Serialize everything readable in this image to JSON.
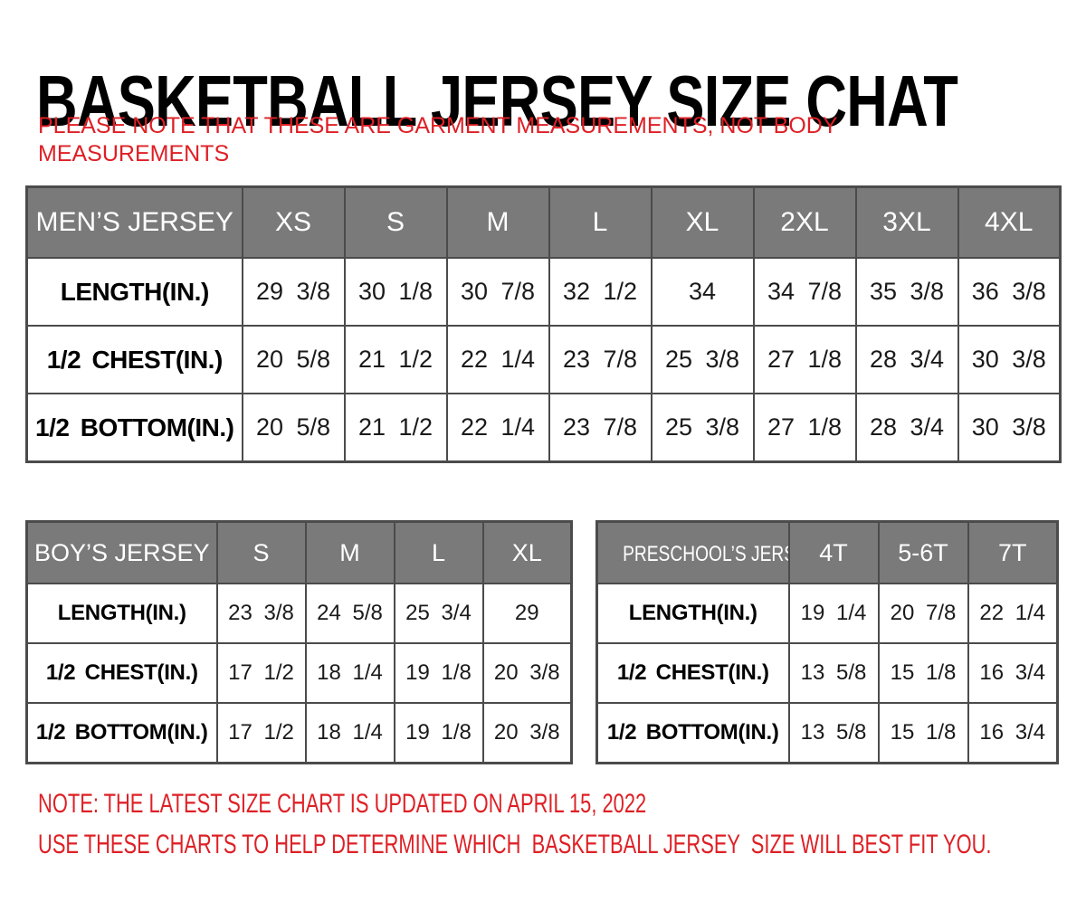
{
  "title": "BASKETBALL JERSEY SIZE CHAT",
  "top_note": "PLEASE NOTE THAT THESE ARE GARMENT MEASUREMENTS, NOT BODY\nMEASUREMENTS",
  "colors": {
    "note_red": "#de2026",
    "header_gray": "#7a7a7a",
    "border_gray": "#4b4b4b",
    "text_black": "#111111",
    "header_text_white": "#ffffff"
  },
  "tables": {
    "mens": {
      "header": [
        "MEN’S JERSEY",
        "XS",
        "S",
        "M",
        "L",
        "XL",
        "2XL",
        "3XL",
        "4XL"
      ],
      "rows": [
        {
          "label": "LENGTH(IN.)",
          "values": [
            "29 3/8",
            "30 1/8",
            "30 7/8",
            "32 1/2",
            "34",
            "34 7/8",
            "35 3/8",
            "36 3/8"
          ]
        },
        {
          "label": "1/2 CHEST(IN.)",
          "values": [
            "20 5/8",
            "21 1/2",
            "22 1/4",
            "23 7/8",
            "25 3/8",
            "27 1/8",
            "28 3/4",
            "30 3/8"
          ]
        },
        {
          "label": "1/2 BOTTOM(IN.)",
          "values": [
            "20 5/8",
            "21 1/2",
            "22 1/4",
            "23 7/8",
            "25 3/8",
            "27 1/8",
            "28 3/4",
            "30 3/8"
          ]
        }
      ]
    },
    "boys": {
      "header": [
        "BOY’S JERSEY",
        "S",
        "M",
        "L",
        "XL"
      ],
      "rows": [
        {
          "label": "LENGTH(IN.)",
          "values": [
            "23 3/8",
            "24 5/8",
            "25 3/4",
            "29"
          ]
        },
        {
          "label": "1/2 CHEST(IN.)",
          "values": [
            "17 1/2",
            "18 1/4",
            "19 1/8",
            "20 3/8"
          ]
        },
        {
          "label": "1/2 BOTTOM(IN.)",
          "values": [
            "17 1/2",
            "18 1/4",
            "19 1/8",
            "20 3/8"
          ]
        }
      ]
    },
    "preschool": {
      "header": [
        "PRESCHOOL’S JERSEY",
        "4T",
        "5-6T",
        "7T"
      ],
      "rows": [
        {
          "label": "LENGTH(IN.)",
          "values": [
            "19 1/4",
            "20 7/8",
            "22 1/4"
          ]
        },
        {
          "label": "1/2 CHEST(IN.)",
          "values": [
            "13 5/8",
            "15 1/8",
            "16 3/4"
          ]
        },
        {
          "label": "1/2 BOTTOM(IN.)",
          "values": [
            "13 5/8",
            "15 1/8",
            "16 3/4"
          ]
        }
      ]
    }
  },
  "bottom_notes": [
    "NOTE: THE LATEST SIZE CHART IS UPDATED ON APRIL 15, 2022",
    "USE THESE CHARTS TO HELP DETERMINE WHICH  BASKETBALL JERSEY  SIZE WILL BEST FIT YOU."
  ]
}
